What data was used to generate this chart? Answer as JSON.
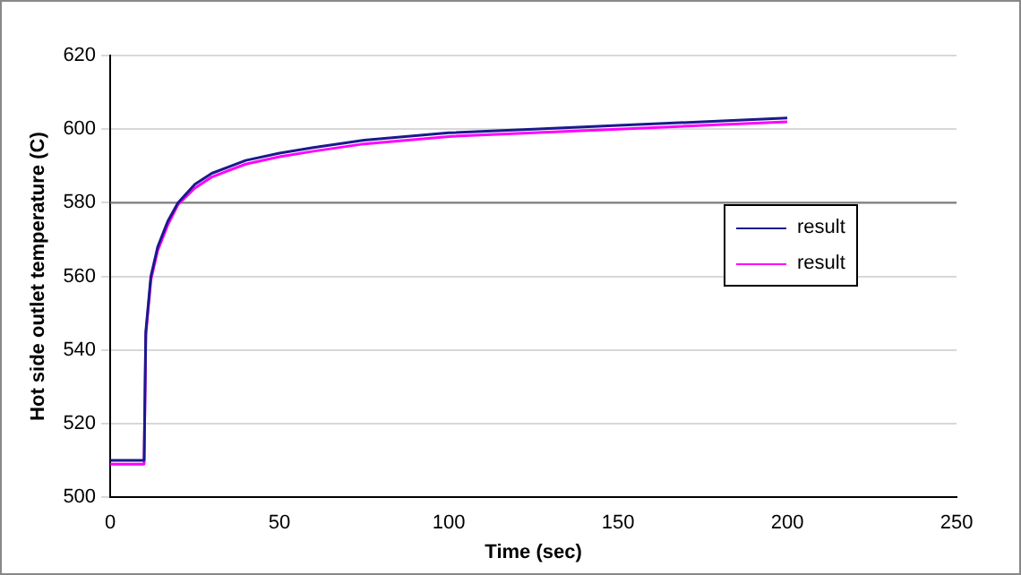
{
  "chart_data": {
    "type": "line",
    "xlabel": "Time (sec)",
    "ylabel": "Hot side outlet temperature (C)",
    "xlim": [
      0,
      250
    ],
    "xticks": [
      0,
      50,
      100,
      150,
      200,
      250
    ],
    "ylim": [
      500,
      620
    ],
    "yticks": [
      500,
      520,
      540,
      560,
      580,
      600,
      620
    ],
    "grid": "y",
    "legend": "right",
    "marker": "none",
    "line_style": "solid",
    "ref_lines": [
      {
        "axis": "y",
        "value": 580,
        "color": "#808080"
      }
    ],
    "series": [
      {
        "name": "result",
        "color": "#1a1a8c",
        "x": [
          0,
          10,
          10.5,
          12,
          14,
          17,
          20,
          25,
          30,
          40,
          50,
          60,
          75,
          100,
          125,
          150,
          175,
          200
        ],
        "values": [
          510,
          510,
          545,
          560,
          568,
          575,
          580,
          585,
          588,
          591.5,
          593.5,
          595,
          597,
          599,
          600,
          601,
          602,
          603
        ]
      },
      {
        "name": "result",
        "color": "#ff00ff",
        "x": [
          0,
          10,
          10.5,
          12,
          14,
          17,
          20,
          25,
          30,
          40,
          50,
          60,
          75,
          100,
          125,
          150,
          175,
          200
        ],
        "values": [
          509,
          509,
          544,
          559,
          567,
          574,
          579.5,
          584,
          587,
          590.5,
          592.5,
          594,
          596,
          598,
          599,
          600,
          601,
          602
        ]
      }
    ]
  }
}
